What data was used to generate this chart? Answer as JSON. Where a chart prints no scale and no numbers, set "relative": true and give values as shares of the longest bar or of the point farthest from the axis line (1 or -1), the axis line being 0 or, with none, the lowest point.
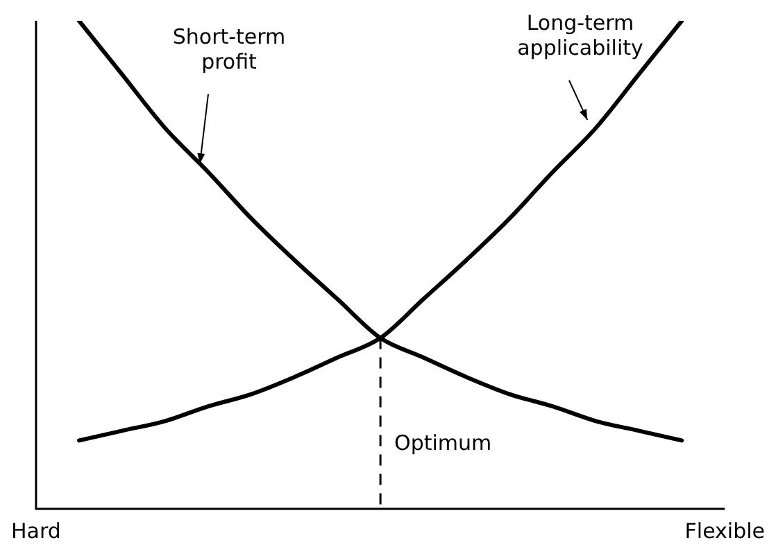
{
  "chart_data": {
    "type": "line",
    "relative": true,
    "categories": [
      "Hard",
      null,
      null,
      null,
      null,
      null,
      null,
      null,
      null,
      null,
      null,
      null,
      null,
      null,
      null,
      null,
      "Flexible"
    ],
    "series": [
      {
        "name": "Short-term profit",
        "color": "#000000",
        "values": [
          null,
          1.0,
          0.89,
          0.78,
          0.69,
          0.595,
          0.51,
          0.43,
          0.35,
          0.31,
          0.27,
          0.235,
          0.21,
          0.18,
          0.16,
          0.14,
          null
        ]
      },
      {
        "name": "Long-term applicability",
        "color": "#000000",
        "values": [
          null,
          0.14,
          0.16,
          0.18,
          0.21,
          0.235,
          0.27,
          0.31,
          0.35,
          0.43,
          0.51,
          0.595,
          0.69,
          0.78,
          0.89,
          1.0,
          null
        ]
      }
    ],
    "annotations": [
      "Optimum"
    ],
    "marker": "none",
    "line_style": "solid",
    "grid": false,
    "legend": false
  }
}
